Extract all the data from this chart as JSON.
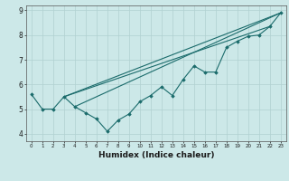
{
  "xlabel": "Humidex (Indice chaleur)",
  "x_data": [
    0,
    1,
    2,
    3,
    4,
    5,
    6,
    7,
    8,
    9,
    10,
    11,
    12,
    13,
    14,
    15,
    16,
    17,
    18,
    19,
    20,
    21,
    22,
    23
  ],
  "y_zigzag": [
    5.6,
    5.0,
    5.0,
    5.5,
    5.1,
    4.85,
    4.6,
    4.1,
    4.55,
    4.8,
    5.3,
    5.55,
    5.9,
    5.55,
    6.2,
    6.75,
    6.5,
    6.5,
    7.5,
    7.75,
    7.95,
    8.0,
    8.35,
    8.9
  ],
  "line1_x": [
    3,
    23
  ],
  "line1_y": [
    5.5,
    8.9
  ],
  "line2_x": [
    3,
    22
  ],
  "line2_y": [
    5.5,
    8.35
  ],
  "line3_x": [
    4,
    23
  ],
  "line3_y": [
    5.1,
    8.9
  ],
  "bg_color": "#cce8e8",
  "line_color": "#1a6b6b",
  "grid_color": "#b0d0d0",
  "ylim": [
    3.7,
    9.2
  ],
  "xlim": [
    -0.5,
    23.5
  ],
  "yticks": [
    4,
    5,
    6,
    7,
    8,
    9
  ],
  "xticks": [
    0,
    1,
    2,
    3,
    4,
    5,
    6,
    7,
    8,
    9,
    10,
    11,
    12,
    13,
    14,
    15,
    16,
    17,
    18,
    19,
    20,
    21,
    22,
    23
  ]
}
